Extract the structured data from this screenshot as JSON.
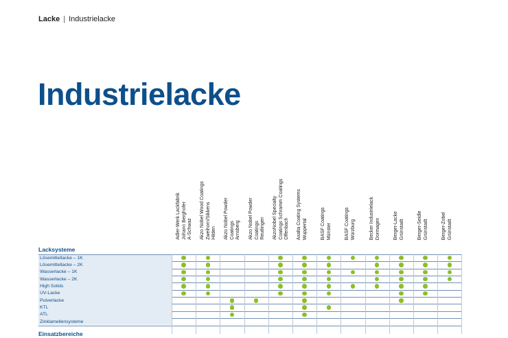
{
  "breadcrumb": {
    "section": "Lacke",
    "separator": "|",
    "page": "Industrielacke"
  },
  "title": "Industrielacke",
  "columns": [
    {
      "lines": [
        "Adler-Werk Lackfabrik",
        "Johann Berghofer",
        "A-Schwaz"
      ]
    },
    {
      "lines": [
        "Akzo Nobel Wood Coatings",
        "Zweihorn/Sikkens",
        "Hilden"
      ]
    },
    {
      "lines": [
        "Akzo Nobel Powder",
        "Coatings",
        "Arnsberg"
      ]
    },
    {
      "lines": [
        "Akzo Nobel Powder",
        "Coatings",
        "Reutlingen"
      ]
    },
    {
      "lines": [
        "AkzoNobel Specialty",
        "Coatings Schramm Coatings",
        "Offenbach"
      ]
    },
    {
      "lines": [
        "Axalta Coating Systems",
        "Wuppertal"
      ]
    },
    {
      "lines": [
        "BASF Coatings",
        "Münster"
      ]
    },
    {
      "lines": [
        "BASF Coatings",
        "Würzburg"
      ]
    },
    {
      "lines": [
        "Becker Industrielack",
        "Dormagen"
      ]
    },
    {
      "lines": [
        "Berger-Lacke",
        "Grünstadt"
      ]
    },
    {
      "lines": [
        "Berger-Seidle",
        "Grünstadt"
      ]
    },
    {
      "lines": [
        "Berger-Zobel",
        "Grünstadt"
      ]
    }
  ],
  "sections": {
    "lacksysteme": "Lacksysteme",
    "einsatzbereiche": "Einsatzbereiche"
  },
  "rows": [
    {
      "label": "Lösemittellacke – 1K",
      "marks": [
        1,
        1,
        0,
        0,
        1,
        1,
        1,
        1,
        1,
        1,
        1,
        1
      ]
    },
    {
      "label": "Lösemittellacke – 2K",
      "marks": [
        1,
        1,
        0,
        0,
        1,
        1,
        1,
        0,
        1,
        1,
        1,
        1
      ]
    },
    {
      "label": "Wasserlacke – 1K",
      "marks": [
        1,
        1,
        0,
        0,
        1,
        1,
        1,
        1,
        1,
        1,
        1,
        1
      ]
    },
    {
      "label": "Wasserlacke – 2K",
      "marks": [
        1,
        1,
        0,
        0,
        1,
        1,
        1,
        0,
        1,
        1,
        1,
        1
      ]
    },
    {
      "label": "High Solids",
      "marks": [
        1,
        1,
        0,
        0,
        1,
        1,
        1,
        1,
        1,
        1,
        1,
        0
      ]
    },
    {
      "label": "UV-Lacke",
      "marks": [
        1,
        1,
        0,
        0,
        1,
        1,
        1,
        0,
        0,
        1,
        1,
        0
      ]
    },
    {
      "label": "Pulverlacke",
      "marks": [
        0,
        0,
        1,
        1,
        0,
        1,
        0,
        0,
        0,
        1,
        0,
        0
      ]
    },
    {
      "label": "KTL",
      "marks": [
        0,
        0,
        1,
        0,
        0,
        1,
        1,
        0,
        0,
        0,
        0,
        0
      ]
    },
    {
      "label": "ATL",
      "marks": [
        0,
        0,
        1,
        0,
        0,
        1,
        0,
        0,
        0,
        0,
        0,
        0
      ]
    },
    {
      "label": "Zinklamellensysteme",
      "marks": [
        0,
        0,
        0,
        0,
        0,
        0,
        0,
        0,
        0,
        0,
        0,
        0
      ]
    }
  ],
  "colors": {
    "title_blue": "#0d4f8b",
    "dot_green": "#8cbf26",
    "label_bg": "#e3ebf4"
  }
}
